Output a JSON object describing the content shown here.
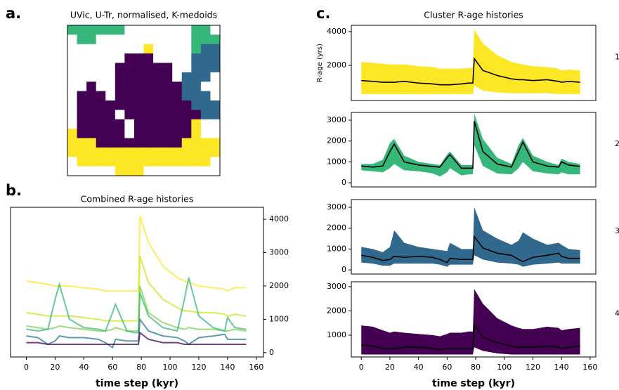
{
  "chart_data": [
    {
      "type": "map",
      "panel_label": "a.",
      "title": "UVic, U-Tr, normalised, K-medoids",
      "colors": [
        "#ffffff",
        "#fde725",
        "#35b779",
        "#31688e",
        "#440154"
      ],
      "grid": [
        [
          2,
          2,
          2,
          2,
          2,
          2,
          0,
          0,
          0,
          0,
          0,
          0,
          0,
          2,
          2,
          0
        ],
        [
          0,
          2,
          2,
          0,
          0,
          0,
          0,
          0,
          0,
          0,
          0,
          0,
          0,
          2,
          2,
          2
        ],
        [
          0,
          0,
          0,
          0,
          0,
          0,
          0,
          0,
          1,
          0,
          0,
          0,
          0,
          2,
          3,
          3
        ],
        [
          0,
          0,
          0,
          0,
          0,
          0,
          4,
          4,
          4,
          0,
          0,
          0,
          0,
          3,
          3,
          3
        ],
        [
          0,
          0,
          0,
          0,
          0,
          4,
          4,
          4,
          4,
          4,
          4,
          0,
          0,
          3,
          3,
          3
        ],
        [
          0,
          0,
          0,
          0,
          0,
          4,
          4,
          4,
          4,
          4,
          4,
          0,
          3,
          3,
          3,
          0
        ],
        [
          0,
          0,
          4,
          0,
          0,
          4,
          4,
          4,
          4,
          4,
          4,
          4,
          3,
          3,
          0,
          0
        ],
        [
          0,
          4,
          4,
          4,
          0,
          4,
          4,
          4,
          4,
          4,
          4,
          4,
          3,
          3,
          3,
          0
        ],
        [
          0,
          4,
          4,
          4,
          4,
          4,
          4,
          4,
          4,
          4,
          4,
          4,
          4,
          3,
          3,
          3
        ],
        [
          0,
          4,
          4,
          4,
          4,
          0,
          4,
          4,
          4,
          4,
          4,
          4,
          4,
          4,
          3,
          3
        ],
        [
          0,
          4,
          4,
          4,
          4,
          4,
          0,
          4,
          4,
          4,
          4,
          4,
          4,
          1,
          0,
          0
        ],
        [
          1,
          4,
          4,
          4,
          4,
          4,
          0,
          4,
          4,
          4,
          4,
          4,
          4,
          1,
          0,
          0
        ],
        [
          1,
          1,
          1,
          4,
          4,
          4,
          4,
          4,
          4,
          4,
          4,
          4,
          1,
          1,
          1,
          1
        ],
        [
          1,
          1,
          1,
          1,
          1,
          1,
          1,
          1,
          1,
          1,
          1,
          1,
          1,
          1,
          1,
          1
        ],
        [
          0,
          1,
          1,
          1,
          1,
          1,
          1,
          1,
          1,
          1,
          1,
          1,
          1,
          1,
          1,
          0
        ],
        [
          0,
          0,
          0,
          0,
          0,
          1,
          1,
          1,
          0,
          0,
          0,
          0,
          0,
          0,
          0,
          0
        ]
      ]
    },
    {
      "type": "line",
      "panel_label": "b.",
      "title": "Combined R-age histories",
      "x_label": "time step (kyr)",
      "x": [
        0,
        8,
        15,
        20,
        23,
        30,
        40,
        50,
        55,
        60,
        62,
        70,
        75,
        78,
        79,
        85,
        95,
        105,
        110,
        113,
        120,
        130,
        138,
        140,
        145,
        153
      ],
      "xlim": [
        -11,
        165
      ],
      "xticks": [
        0,
        20,
        40,
        60,
        80,
        100,
        120,
        140,
        160
      ],
      "ylim": [
        -130,
        4360
      ],
      "yticks": [
        0,
        1000,
        2000,
        3000,
        4000
      ],
      "y_axis_side": "right",
      "series": [
        {
          "color": "#fde725",
          "values": [
            2150,
            2100,
            2050,
            2000,
            2000,
            2000,
            1950,
            1900,
            1850,
            1850,
            1850,
            1850,
            1850,
            1850,
            4100,
            3300,
            2600,
            2250,
            2150,
            2100,
            2000,
            1950,
            1900,
            1850,
            1950,
            1950
          ]
        },
        {
          "color": "#d2e21b",
          "values": [
            1200,
            1150,
            1100,
            1100,
            1100,
            1100,
            1050,
            1000,
            950,
            950,
            950,
            950,
            950,
            950,
            2900,
            2100,
            1600,
            1350,
            1250,
            1250,
            1200,
            1200,
            1150,
            1100,
            1150,
            1100
          ]
        },
        {
          "color": "#7ad151",
          "values": [
            800,
            750,
            700,
            750,
            800,
            750,
            700,
            650,
            650,
            700,
            750,
            650,
            650,
            650,
            2000,
            1200,
            900,
            750,
            700,
            750,
            700,
            700,
            650,
            650,
            700,
            650
          ]
        },
        {
          "color": "#35b779",
          "values": [
            700,
            650,
            700,
            1600,
            2050,
            1000,
            750,
            700,
            650,
            1200,
            1450,
            650,
            600,
            600,
            1800,
            1100,
            750,
            650,
            1600,
            2250,
            1100,
            750,
            650,
            1050,
            750,
            700
          ]
        },
        {
          "color": "#2a788e",
          "values": [
            500,
            450,
            250,
            350,
            500,
            450,
            450,
            400,
            300,
            150,
            400,
            350,
            350,
            350,
            1000,
            650,
            500,
            450,
            350,
            250,
            450,
            500,
            550,
            400,
            400,
            400
          ]
        },
        {
          "color": "#440154",
          "values": [
            300,
            300,
            250,
            250,
            250,
            250,
            250,
            250,
            250,
            250,
            250,
            250,
            250,
            250,
            600,
            400,
            300,
            300,
            250,
            250,
            250,
            250,
            250,
            250,
            250,
            250
          ]
        }
      ]
    },
    {
      "type": "band",
      "panel_label": "c.",
      "title": "Cluster R-age histories",
      "y_label": "R-age (yrs)",
      "side_label": "1",
      "x": [
        0,
        8,
        15,
        20,
        23,
        30,
        40,
        50,
        55,
        60,
        62,
        70,
        75,
        78,
        79,
        85,
        95,
        105,
        110,
        113,
        120,
        130,
        138,
        140,
        145,
        153
      ],
      "xlim": [
        -7,
        164
      ],
      "ylim": [
        -80,
        4370
      ],
      "yticks": [
        2000,
        4000
      ],
      "band": {
        "color": "#fde725",
        "lower": [
          300,
          300,
          300,
          300,
          300,
          300,
          300,
          300,
          300,
          300,
          300,
          300,
          300,
          300,
          800,
          500,
          400,
          350,
          350,
          350,
          350,
          350,
          300,
          300,
          300,
          300
        ],
        "upper": [
          2200,
          2150,
          2100,
          2050,
          2050,
          2050,
          1950,
          1900,
          1800,
          1800,
          1800,
          1800,
          1850,
          1850,
          4100,
          3300,
          2600,
          2200,
          2100,
          2050,
          1950,
          1900,
          1800,
          1700,
          1750,
          1700
        ]
      },
      "mean": {
        "color": "#000000",
        "values": [
          1100,
          1050,
          1000,
          1000,
          1000,
          1050,
          950,
          900,
          850,
          850,
          850,
          900,
          950,
          950,
          2400,
          1700,
          1400,
          1200,
          1150,
          1150,
          1100,
          1150,
          1050,
          1000,
          1050,
          1000
        ]
      }
    },
    {
      "type": "band",
      "side_label": "2",
      "x": [
        0,
        8,
        15,
        20,
        23,
        30,
        40,
        50,
        55,
        60,
        62,
        70,
        75,
        78,
        79,
        85,
        95,
        105,
        110,
        113,
        120,
        130,
        138,
        140,
        145,
        153
      ],
      "xlim": [
        -7,
        164
      ],
      "ylim": [
        -200,
        3370
      ],
      "yticks": [
        0,
        1000,
        2000,
        3000
      ],
      "band": {
        "color": "#35b779",
        "lower": [
          600,
          550,
          500,
          700,
          900,
          600,
          550,
          450,
          300,
          500,
          700,
          350,
          400,
          400,
          1800,
          800,
          450,
          400,
          700,
          1000,
          550,
          450,
          400,
          500,
          400,
          400
        ],
        "upper": [
          900,
          900,
          1100,
          1900,
          2100,
          1300,
          1000,
          900,
          850,
          1350,
          1500,
          850,
          850,
          850,
          3300,
          2100,
          1200,
          900,
          1800,
          2150,
          1300,
          1000,
          850,
          1150,
          1000,
          900
        ]
      },
      "mean": {
        "color": "#000000",
        "values": [
          800,
          750,
          800,
          1500,
          1850,
          1000,
          850,
          780,
          750,
          1200,
          1350,
          700,
          700,
          700,
          2950,
          1500,
          900,
          750,
          1500,
          1950,
          1000,
          800,
          750,
          1000,
          850,
          780
        ]
      }
    },
    {
      "type": "band",
      "side_label": "3",
      "x": [
        0,
        8,
        15,
        20,
        23,
        30,
        40,
        50,
        55,
        60,
        62,
        70,
        75,
        78,
        79,
        85,
        95,
        105,
        110,
        113,
        120,
        130,
        138,
        140,
        145,
        153
      ],
      "xlim": [
        -7,
        164
      ],
      "ylim": [
        -200,
        3370
      ],
      "yticks": [
        0,
        1000,
        2000,
        3000
      ],
      "band": {
        "color": "#31688e",
        "lower": [
          350,
          300,
          200,
          200,
          300,
          300,
          300,
          300,
          250,
          150,
          250,
          250,
          250,
          250,
          700,
          500,
          350,
          300,
          250,
          150,
          250,
          300,
          350,
          300,
          300,
          300
        ],
        "upper": [
          1100,
          1000,
          850,
          1100,
          1900,
          1300,
          1100,
          1000,
          950,
          900,
          1300,
          1000,
          1000,
          1000,
          3000,
          1900,
          1500,
          1200,
          1400,
          1800,
          1500,
          1200,
          1300,
          1200,
          1000,
          950
        ]
      },
      "mean": {
        "color": "#000000",
        "values": [
          700,
          600,
          450,
          500,
          650,
          600,
          650,
          600,
          500,
          350,
          550,
          500,
          500,
          500,
          1600,
          1050,
          800,
          700,
          500,
          400,
          600,
          700,
          800,
          650,
          550,
          550
        ]
      }
    },
    {
      "type": "band",
      "side_label": "4",
      "x_label": "time step (kyr)",
      "x": [
        0,
        8,
        15,
        20,
        23,
        30,
        40,
        50,
        55,
        60,
        62,
        70,
        75,
        78,
        79,
        85,
        95,
        105,
        110,
        113,
        120,
        130,
        138,
        140,
        145,
        153
      ],
      "xlim": [
        -7,
        164
      ],
      "xticks": [
        0,
        20,
        40,
        60,
        80,
        100,
        120,
        140,
        160
      ],
      "ylim": [
        100,
        3200
      ],
      "yticks": [
        1000,
        2000,
        3000
      ],
      "band": {
        "color": "#440154",
        "lower": [
          200,
          200,
          200,
          200,
          200,
          200,
          200,
          200,
          200,
          200,
          200,
          200,
          200,
          200,
          500,
          350,
          250,
          200,
          200,
          200,
          200,
          200,
          200,
          200,
          200,
          200
        ],
        "upper": [
          1400,
          1350,
          1200,
          1100,
          1150,
          1100,
          1050,
          1000,
          950,
          1050,
          1100,
          1100,
          1150,
          1150,
          2900,
          2300,
          1700,
          1400,
          1300,
          1250,
          1250,
          1350,
          1300,
          1200,
          1250,
          1300
        ]
      },
      "mean": {
        "color": "#000000",
        "values": [
          600,
          550,
          450,
          450,
          450,
          500,
          500,
          450,
          400,
          450,
          450,
          450,
          450,
          450,
          1450,
          900,
          700,
          550,
          500,
          500,
          500,
          550,
          500,
          450,
          500,
          550
        ]
      }
    }
  ]
}
